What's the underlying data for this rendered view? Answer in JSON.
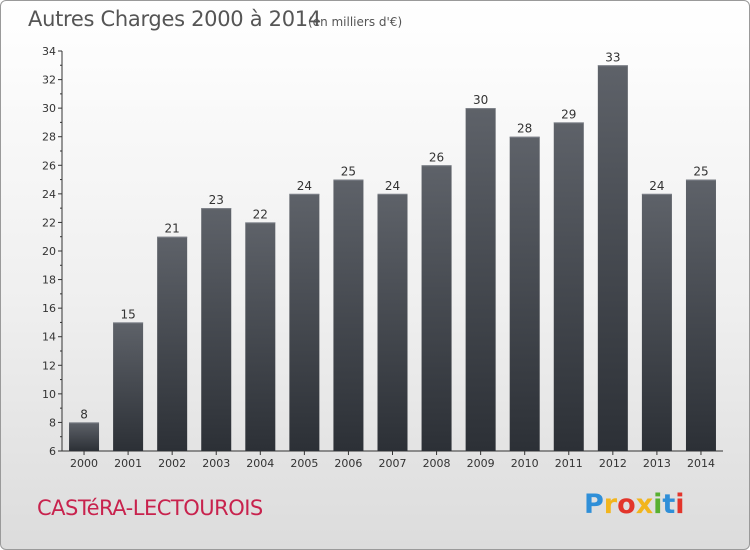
{
  "colors": {
    "bar_top": "#5e6269",
    "bar_bottom": "#2c3036",
    "axis": "#333333",
    "text": "#333333",
    "grid": "none",
    "brand": "#c8224d"
  },
  "header": {
    "title": "Autres Charges 2000 à 2014",
    "subtitle": "(en milliers d'€)"
  },
  "footer": {
    "commune": "CASTéRA-LECTOUROIS",
    "brand_letters": [
      "P",
      "r",
      "o",
      "x",
      "i",
      "t",
      "i"
    ],
    "brand_colors": [
      "#2f8fd8",
      "#f2b51d",
      "#e3352b",
      "#f2b51d",
      "#58b031",
      "#2f8fd8",
      "#e3352b"
    ]
  },
  "chart_data": {
    "type": "bar",
    "title": "Autres Charges 2000 à 2014",
    "subtitle": "(en milliers d'€)",
    "xlabel": "",
    "ylabel": "",
    "categories": [
      "2000",
      "2001",
      "2002",
      "2003",
      "2004",
      "2005",
      "2006",
      "2007",
      "2008",
      "2009",
      "2010",
      "2011",
      "2012",
      "2013",
      "2014"
    ],
    "values": [
      8,
      15,
      21,
      23,
      22,
      24,
      25,
      24,
      26,
      30,
      28,
      29,
      33,
      24,
      25
    ],
    "ylim": [
      6,
      34
    ],
    "yticks": [
      6,
      8,
      10,
      12,
      14,
      16,
      18,
      20,
      22,
      24,
      26,
      28,
      30,
      32,
      34
    ],
    "data_labels": true,
    "legend": "none",
    "grid": false
  }
}
